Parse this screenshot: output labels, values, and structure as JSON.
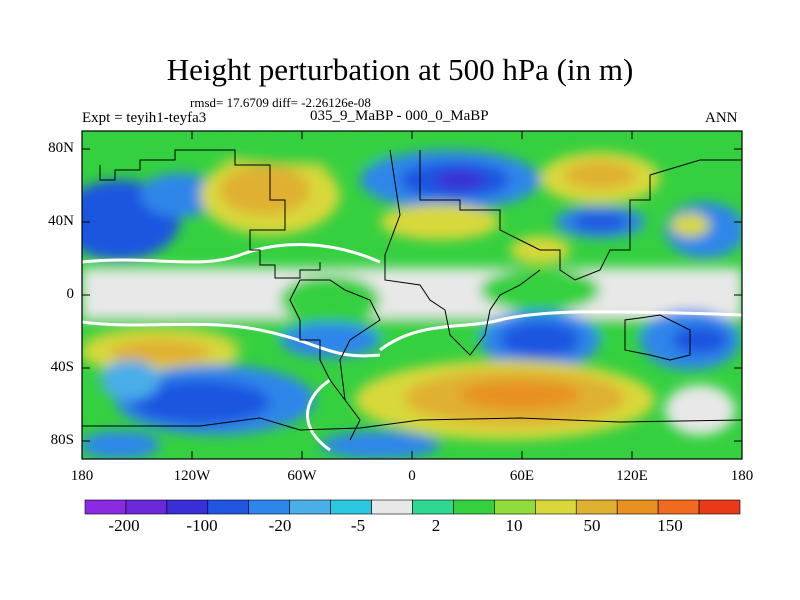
{
  "title": "Height perturbation at 500 hPa (in m)",
  "stats": "rmsd= 17.6709 diff= -2.26126e-08",
  "expt": "Expt = teyih1-teyfa3",
  "case": "035_9_MaBP - 000_0_MaBP",
  "season": "ANN",
  "lat_labels": [
    "80N",
    "40N",
    "0",
    "40S",
    "80S"
  ],
  "lon_labels": [
    "180",
    "120W",
    "60W",
    "0",
    "60E",
    "120E",
    "180"
  ],
  "colorbar": {
    "labels": [
      "-200",
      "-100",
      "-20",
      "-5",
      "2",
      "10",
      "50",
      "150"
    ],
    "colors": [
      "#8a2be2",
      "#6a28d8",
      "#3a2fd6",
      "#1f55e0",
      "#2e86ea",
      "#4aaee8",
      "#2bc6e0",
      "#e8e8e8",
      "#2fd892",
      "#35d040",
      "#8fdc3a",
      "#d8d83a",
      "#e0b030",
      "#e89020",
      "#f06a20",
      "#e83a18"
    ]
  }
}
